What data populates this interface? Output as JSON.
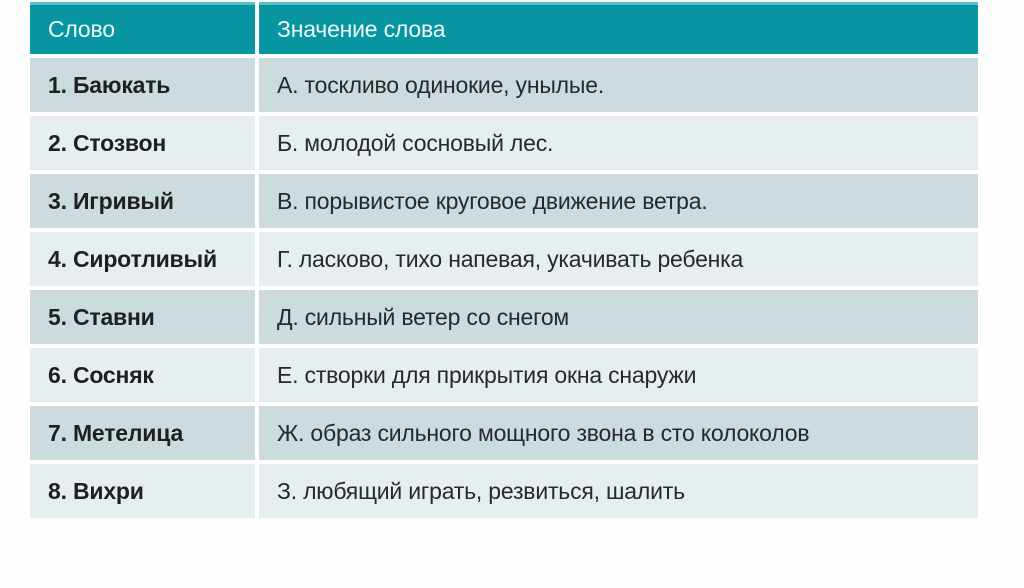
{
  "colors": {
    "header_bg": "#0795a2",
    "header_accent": "#58c1c7",
    "header_text": "#eff8f9",
    "row_band_dark": "#cbdbde",
    "row_band_light": "#e6eef0",
    "body_text": "#1d2023",
    "page_bg": "#fdfdfd"
  },
  "table": {
    "headers": {
      "word": "Слово",
      "meaning": "Значение слова"
    },
    "rows": [
      {
        "word": "1. Баюкать",
        "meaning": "А. тоскливо одинокие, унылые."
      },
      {
        "word": "2. Стозвон",
        "meaning": "Б. молодой сосновый лес."
      },
      {
        "word": "3. Игривый",
        "meaning": "В. порывистое круговое движение ветра."
      },
      {
        "word": "4. Сиротливый",
        "meaning": "Г. ласково, тихо напевая, укачивать ребенка"
      },
      {
        "word": "5. Ставни",
        "meaning": "Д. сильный ветер со снегом"
      },
      {
        "word": "6. Сосняк",
        "meaning": "Е. створки для прикрытия окна снаружи"
      },
      {
        "word": "7. Метелица",
        "meaning": "Ж. образ сильного мощного звона в сто колоколов"
      },
      {
        "word": "8. Вихри",
        "meaning": "З. любящий играть, резвиться, шалить"
      }
    ]
  }
}
